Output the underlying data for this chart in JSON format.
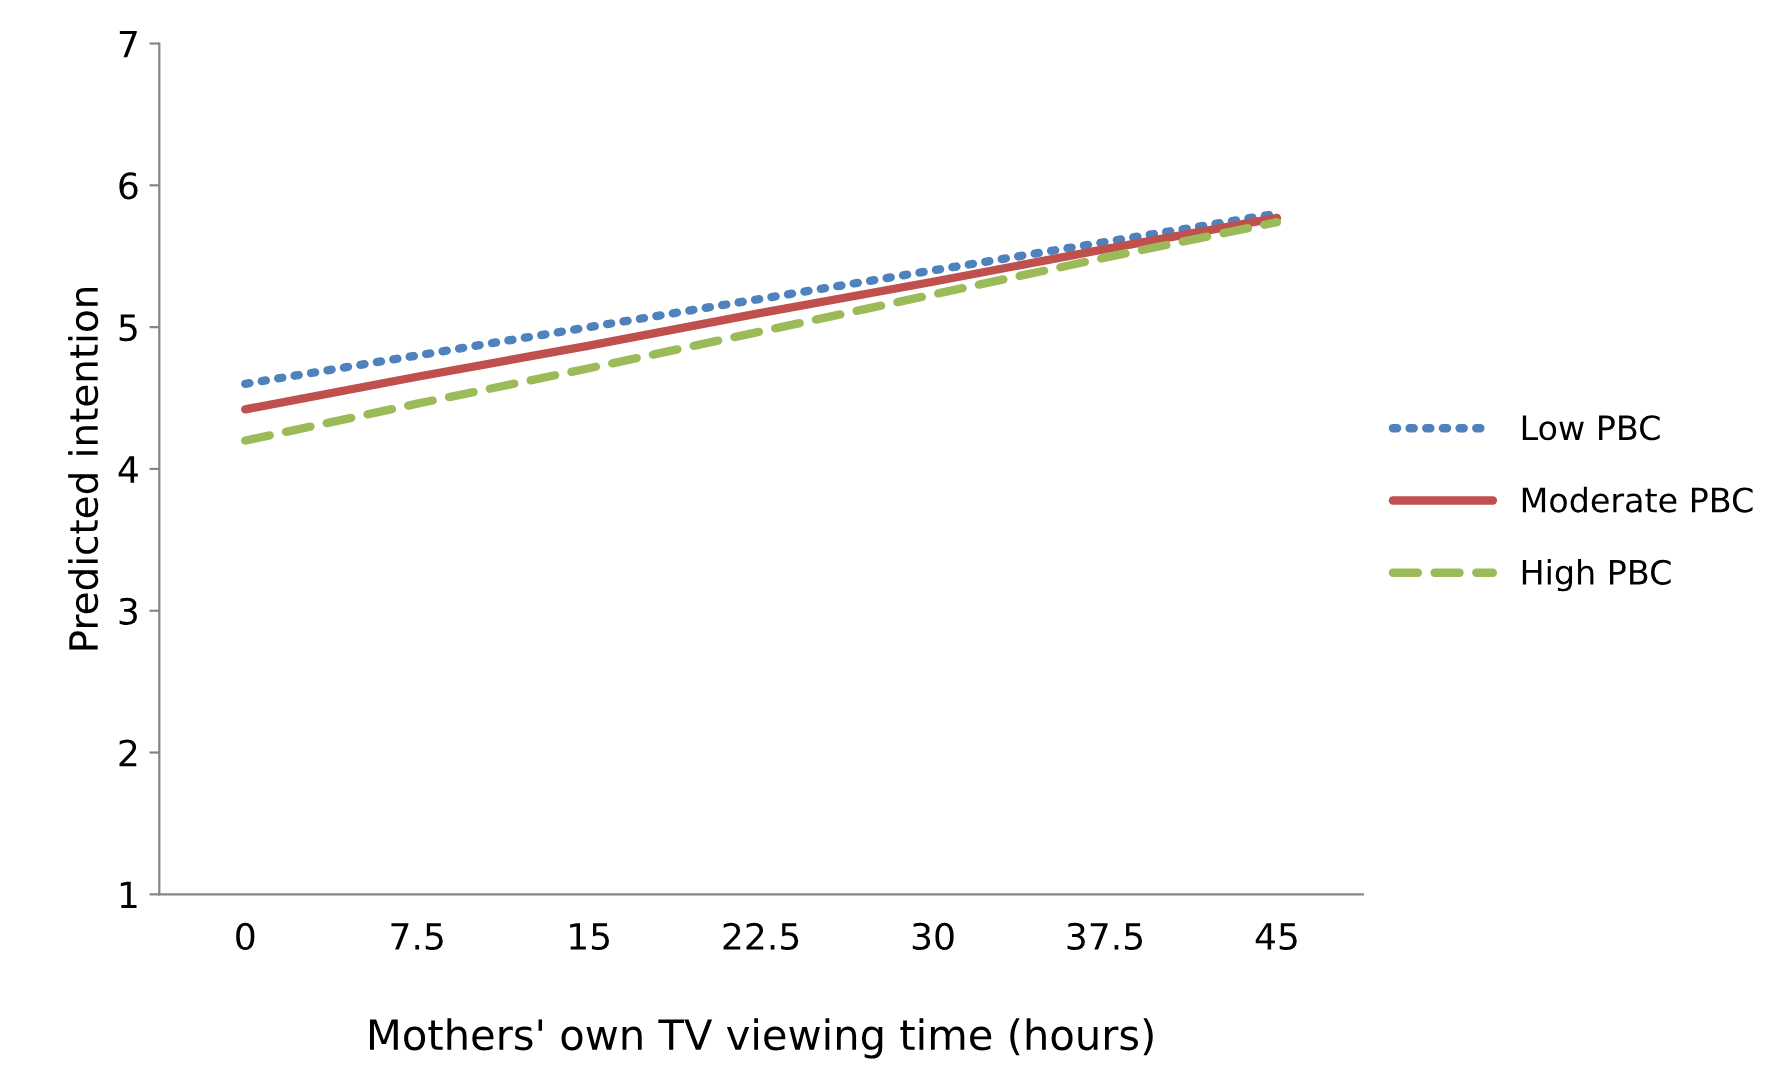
{
  "chart_data": {
    "type": "line",
    "xlabel": "Mothers' own TV viewing time (hours)",
    "ylabel": "Predicted intention",
    "categories": [
      "0",
      "7.5",
      "15",
      "22.5",
      "30",
      "37.5",
      "45"
    ],
    "ylim": [
      1,
      7
    ],
    "yticks": [
      1,
      2,
      3,
      4,
      5,
      6,
      7
    ],
    "grid": false,
    "legend": "right",
    "series": [
      {
        "name": "Low PBC",
        "color": "#4f81bd",
        "values": [
          4.6,
          4.8,
          5.0,
          5.2,
          5.4,
          5.6,
          5.8
        ],
        "line_style": "dotted"
      },
      {
        "name": "Moderate PBC",
        "color": "#c0504d",
        "values": [
          4.42,
          4.65,
          4.87,
          5.1,
          5.32,
          5.55,
          5.77
        ],
        "line_style": "solid"
      },
      {
        "name": "High PBC",
        "color": "#9bbb59",
        "values": [
          4.2,
          4.46,
          4.71,
          4.97,
          5.23,
          5.49,
          5.74
        ],
        "line_style": "dashed"
      }
    ]
  }
}
